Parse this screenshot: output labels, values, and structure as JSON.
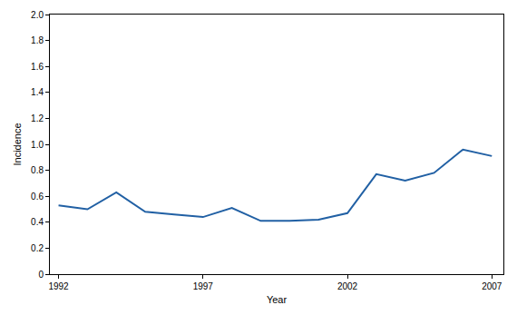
{
  "chart_data": {
    "type": "line",
    "x_label": "Year",
    "y_label": "Incidence",
    "x": [
      1992,
      1993,
      1994,
      1995,
      1996,
      1997,
      1998,
      1999,
      2000,
      2001,
      2002,
      2003,
      2004,
      2005,
      2006,
      2007
    ],
    "values": [
      0.53,
      0.5,
      0.63,
      0.48,
      0.46,
      0.44,
      0.51,
      0.41,
      0.41,
      0.42,
      0.47,
      0.77,
      0.72,
      0.78,
      0.96,
      0.91
    ],
    "color": "#2160a4",
    "xlim": [
      1991.7,
      2007.4
    ],
    "xticks": [
      1992,
      1997,
      2002,
      2007
    ],
    "ylim": [
      0,
      2
    ],
    "yticks": [
      0,
      0.2,
      0.4,
      0.6,
      0.8,
      {
        "value": 1,
        "label": "1.0"
      },
      1.2,
      1.4,
      1.6,
      1.8,
      {
        "value": 2,
        "label": "2.0"
      }
    ],
    "grid": false
  }
}
